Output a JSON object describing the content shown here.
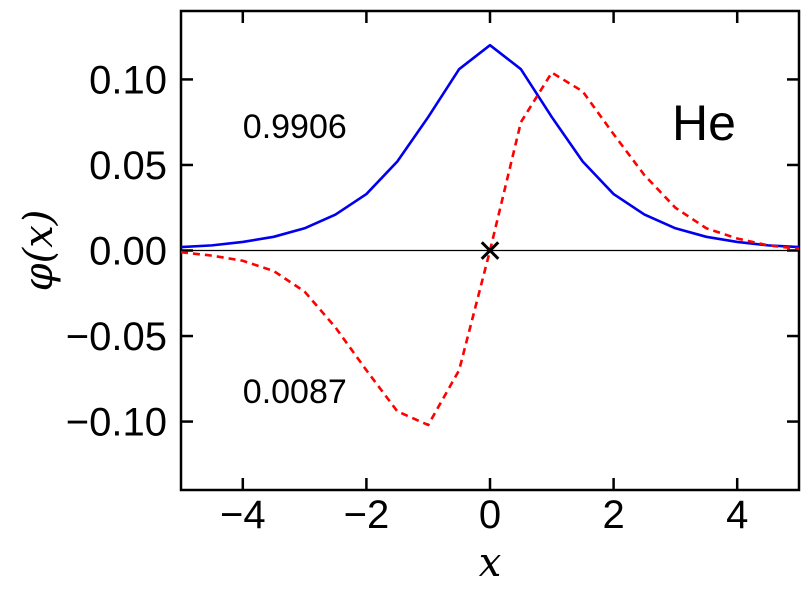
{
  "chart_data": {
    "type": "line",
    "xlabel": "x",
    "ylabel": "φ(x)",
    "xlim": [
      -5,
      5
    ],
    "ylim": [
      -0.14,
      0.14
    ],
    "xticks": [
      -4,
      -2,
      0,
      2,
      4
    ],
    "xtick_labels": [
      "−4",
      "−2",
      "0",
      "2",
      "4"
    ],
    "yticks": [
      0.1,
      0.05,
      0.0,
      -0.05,
      -0.1
    ],
    "ytick_labels": [
      "0.10",
      "0.05",
      "0.00",
      "−0.05",
      "−0.10"
    ],
    "grid": false,
    "series": [
      {
        "color": "#0000ee",
        "style": "solid",
        "x": [
          -5,
          -4.5,
          -4,
          -3.5,
          -3,
          -2.5,
          -2,
          -1.5,
          -1,
          -0.5,
          0,
          0.5,
          1,
          1.5,
          2,
          2.5,
          3,
          3.5,
          4,
          4.5,
          5
        ],
        "y": [
          0.002,
          0.003,
          0.005,
          0.008,
          0.013,
          0.021,
          0.033,
          0.052,
          0.078,
          0.106,
          0.12,
          0.106,
          0.078,
          0.052,
          0.033,
          0.021,
          0.013,
          0.008,
          0.005,
          0.003,
          0.002
        ]
      },
      {
        "color": "#ff0000",
        "style": "dashed",
        "x": [
          -5,
          -4.5,
          -4,
          -3.5,
          -3,
          -2.5,
          -2,
          -1.5,
          -1,
          -0.5,
          0,
          0.5,
          1,
          1.5,
          2,
          2.5,
          3,
          3.5,
          4,
          4.5,
          5
        ],
        "y": [
          -0.001,
          -0.003,
          -0.006,
          -0.012,
          -0.024,
          -0.045,
          -0.07,
          -0.094,
          -0.102,
          -0.07,
          0.0,
          0.075,
          0.104,
          0.093,
          0.068,
          0.044,
          0.025,
          0.013,
          0.007,
          0.003,
          0.001
        ]
      }
    ],
    "annotations": {
      "top_value": "0.9906",
      "bottom_value": "0.0087",
      "element": "He",
      "center_marker": "×"
    }
  }
}
